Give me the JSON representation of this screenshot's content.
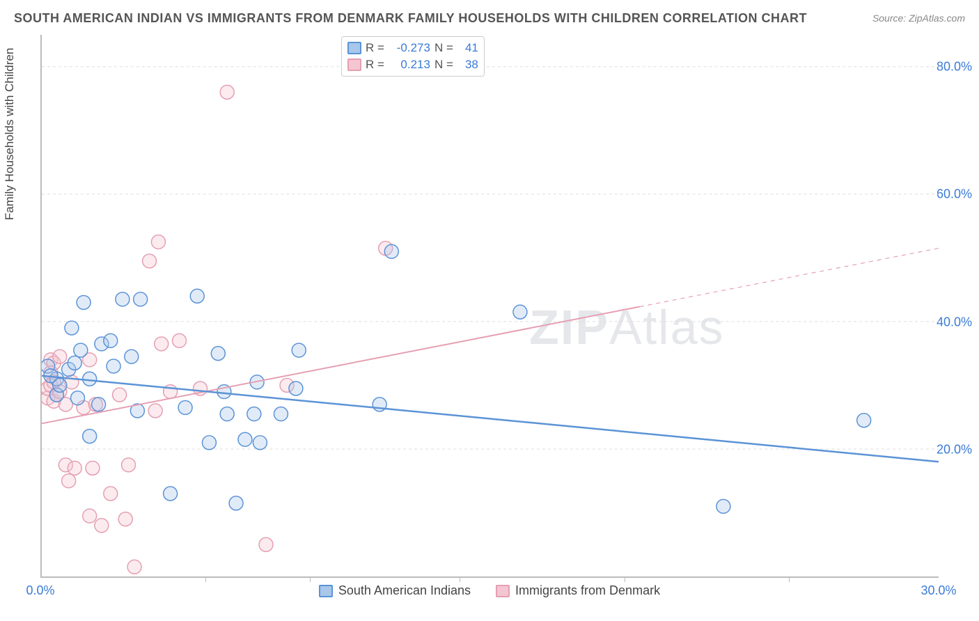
{
  "title": "SOUTH AMERICAN INDIAN VS IMMIGRANTS FROM DENMARK FAMILY HOUSEHOLDS WITH CHILDREN CORRELATION CHART",
  "source": "Source: ZipAtlas.com",
  "watermark_a": "ZIP",
  "watermark_b": "Atlas",
  "yaxis_label": "Family Households with Children",
  "plot": {
    "x_min": 0.0,
    "x_max": 30.0,
    "y_min": 0.0,
    "y_max": 85.0,
    "grid_color": "#dddddd",
    "axis_color": "#bbbbbb",
    "tick_color": "#3a7bd5",
    "y_ticks": [
      20.0,
      40.0,
      60.0,
      80.0
    ],
    "y_tick_labels": [
      "20.0%",
      "40.0%",
      "60.0%",
      "80.0%"
    ],
    "x_ticks": [
      0.0,
      30.0
    ],
    "x_tick_labels": [
      "0.0%",
      "30.0%"
    ],
    "x_minor_ticks": [
      5.5,
      9.0,
      14.0,
      19.5,
      25.0
    ],
    "series": {
      "blue": {
        "label": "South American Indians",
        "color_stroke": "#5b93d6",
        "color_fill": "#a9c7ea",
        "r_label": "R =",
        "r_value": "-0.273",
        "n_label": "N =",
        "n_value": "41",
        "marker_radius": 10,
        "trend": {
          "x1": 0.0,
          "y1": 31.5,
          "x2": 30.0,
          "y2": 18.0,
          "width": 2.5,
          "x_solid_end": 30.0
        },
        "points": [
          [
            0.2,
            33.0
          ],
          [
            0.5,
            31.0
          ],
          [
            0.5,
            28.5
          ],
          [
            0.3,
            31.5
          ],
          [
            0.6,
            30.0
          ],
          [
            0.9,
            32.5
          ],
          [
            1.0,
            39.0
          ],
          [
            1.1,
            33.5
          ],
          [
            1.3,
            35.5
          ],
          [
            1.4,
            43.0
          ],
          [
            1.6,
            31.0
          ],
          [
            1.6,
            22.0
          ],
          [
            1.9,
            27.0
          ],
          [
            2.0,
            36.5
          ],
          [
            2.3,
            37.0
          ],
          [
            2.4,
            33.0
          ],
          [
            2.7,
            43.5
          ],
          [
            3.2,
            26.0
          ],
          [
            3.0,
            34.5
          ],
          [
            3.3,
            43.5
          ],
          [
            4.3,
            13.0
          ],
          [
            4.8,
            26.5
          ],
          [
            5.2,
            44.0
          ],
          [
            5.6,
            21.0
          ],
          [
            6.2,
            25.5
          ],
          [
            6.1,
            29.0
          ],
          [
            5.9,
            35.0
          ],
          [
            6.5,
            11.5
          ],
          [
            6.8,
            21.5
          ],
          [
            7.1,
            25.5
          ],
          [
            7.2,
            30.5
          ],
          [
            7.3,
            21.0
          ],
          [
            8.0,
            25.5
          ],
          [
            8.5,
            29.5
          ],
          [
            8.6,
            35.5
          ],
          [
            11.3,
            27.0
          ],
          [
            11.7,
            51.0
          ],
          [
            16.0,
            41.5
          ],
          [
            22.8,
            11.0
          ],
          [
            27.5,
            24.5
          ],
          [
            1.2,
            28.0
          ]
        ]
      },
      "pink": {
        "label": "Immigrants from Denmark",
        "color_stroke": "#e59fb2",
        "color_fill": "#f4c6d2",
        "r_label": "R =",
        "r_value": "0.213",
        "n_label": "N =",
        "n_value": "38",
        "marker_radius": 10,
        "trend": {
          "x1": 0.0,
          "y1": 24.0,
          "x2": 30.0,
          "y2": 51.5,
          "width": 2.0,
          "x_solid_end": 20.0
        },
        "points": [
          [
            0.2,
            28.0
          ],
          [
            0.2,
            29.5
          ],
          [
            0.3,
            30.0
          ],
          [
            0.3,
            32.0
          ],
          [
            0.3,
            34.0
          ],
          [
            0.4,
            27.5
          ],
          [
            0.4,
            30.5
          ],
          [
            0.4,
            33.5
          ],
          [
            0.5,
            28.5
          ],
          [
            0.6,
            29.0
          ],
          [
            0.6,
            34.5
          ],
          [
            0.8,
            27.0
          ],
          [
            0.8,
            17.5
          ],
          [
            0.9,
            15.0
          ],
          [
            1.0,
            30.5
          ],
          [
            1.1,
            17.0
          ],
          [
            1.4,
            26.5
          ],
          [
            1.6,
            34.0
          ],
          [
            1.6,
            9.5
          ],
          [
            1.7,
            17.0
          ],
          [
            1.8,
            27.0
          ],
          [
            2.0,
            8.0
          ],
          [
            2.3,
            13.0
          ],
          [
            2.6,
            28.5
          ],
          [
            2.8,
            9.0
          ],
          [
            2.9,
            17.5
          ],
          [
            3.1,
            1.5
          ],
          [
            3.6,
            49.5
          ],
          [
            3.8,
            26.0
          ],
          [
            3.9,
            52.5
          ],
          [
            4.0,
            36.5
          ],
          [
            4.3,
            29.0
          ],
          [
            4.6,
            37.0
          ],
          [
            5.3,
            29.5
          ],
          [
            6.2,
            76.0
          ],
          [
            7.5,
            5.0
          ],
          [
            8.2,
            30.0
          ],
          [
            11.5,
            51.5
          ]
        ]
      }
    }
  }
}
